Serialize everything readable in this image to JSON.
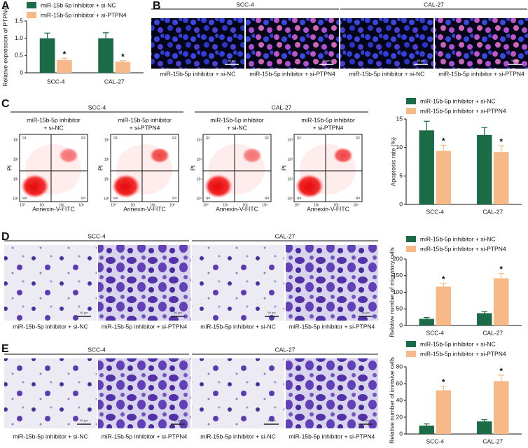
{
  "panel_labels": [
    "A",
    "B",
    "C",
    "D",
    "E"
  ],
  "chart_data": [
    {
      "type": "bar",
      "y_label": "Relative expression of PTPN4",
      "categories": [
        "SCC-4",
        "CAL-27"
      ],
      "series": [
        {
          "name": "miR-15b-5p inhibitor + si-NC",
          "color": "#1b6b46",
          "values": [
            1,
            1
          ],
          "errors": [
            0.15,
            0.16
          ]
        },
        {
          "name": "miR-15b-5p inhibitor + si-PTPN4",
          "color": "#f6b987",
          "values": [
            0.37,
            0.32
          ],
          "errors": [
            0.05,
            0.03
          ],
          "significance": [
            "*",
            "*"
          ]
        }
      ],
      "ylim": [
        0,
        1.5
      ],
      "yticks": [
        0,
        0.5,
        {
          "value": 1,
          "label": "1.0"
        },
        1.5
      ]
    },
    {
      "type": "bar",
      "y_label": "Apoptosis rate (%)",
      "categories": [
        "SCC-4",
        "CAL-27"
      ],
      "series": [
        {
          "name": "miR-15b-5p inhibitor + si-NC",
          "color": "#1b6b46",
          "values": [
            13,
            12.2
          ],
          "errors": [
            1.6,
            1.3
          ]
        },
        {
          "name": "miR-15b-5p inhibitor + si-PTPN4",
          "color": "#f6b987",
          "values": [
            9.4,
            9.2
          ],
          "errors": [
            1,
            1.1
          ],
          "significance": [
            "*",
            "*"
          ]
        }
      ],
      "ylim": [
        0,
        15
      ],
      "yticks": [
        0,
        5,
        10,
        15
      ]
    },
    {
      "type": "bar",
      "y_label": "Relative number of migratory cells",
      "categories": [
        "SCC-4",
        "CAL-27"
      ],
      "series": [
        {
          "name": "miR-15b-5p inhibitor + si-NC",
          "color": "#1b6b46",
          "values": [
            20,
            37
          ],
          "errors": [
            4,
            5
          ]
        },
        {
          "name": "miR-15b-5p inhibitor + si-PTPN4",
          "color": "#f6b987",
          "values": [
            117,
            142
          ],
          "errors": [
            10,
            15
          ],
          "significance": [
            "*",
            "*"
          ]
        }
      ],
      "ylim": [
        0,
        200
      ],
      "yticks": [
        0,
        50,
        100,
        150,
        200
      ]
    },
    {
      "type": "bar",
      "y_label": "Relative number of invasive cells",
      "categories": [
        "SCC-4",
        "CAL-27"
      ],
      "series": [
        {
          "name": "miR-15b-5p inhibitor + si-NC",
          "color": "#1b6b46",
          "values": [
            10,
            15
          ],
          "errors": [
            2,
            2
          ]
        },
        {
          "name": "miR-15b-5p inhibitor + si-PTPN4",
          "color": "#f6b987",
          "values": [
            52,
            63
          ],
          "errors": [
            5,
            7
          ],
          "significance": [
            "*",
            "*"
          ]
        }
      ],
      "ylim": [
        0,
        80
      ],
      "yticks": [
        0,
        20,
        40,
        60,
        80
      ]
    }
  ],
  "panel_b": {
    "groups": [
      "SCC-4",
      "CAL-27"
    ],
    "captions": [
      "miR-15b-5p inhibitor + si-NC",
      "miR-15b-5p inhibitor + si-PTPN4",
      "miR-15b-5p inhibitor + si-NC",
      "miR-15b-5p inhibitor + si-PTPN4"
    ],
    "scale_bar": "50 μm"
  },
  "panel_c": {
    "groups": [
      "SCC-4",
      "CAL-27"
    ],
    "plot_titles": [
      [
        "miR-15b-5p inhibitor",
        "+ si-NC"
      ],
      [
        "miR-15b-5p inhibitor",
        "+ si-PTPN4"
      ],
      [
        "miR-15b-5p inhibitor",
        "+ si-NC"
      ],
      [
        "miR-15b-5p inhibitor",
        "+ si-PTPN4"
      ]
    ],
    "x_label": "Annexin-V-FITC",
    "y_label": "PI",
    "quadrants": [
      "Q1",
      "Q2",
      "Q3",
      "Q4"
    ],
    "ticks": [
      "10⁰",
      "10¹",
      "10²",
      "10³"
    ]
  },
  "panel_d": {
    "groups": [
      "SCC-4",
      "CAL-27"
    ],
    "captions": [
      "miR-15b-5p inhibitor + si-NC",
      "miR-15b-5p inhibitor + si-PTPN4",
      "miR-15b-5p inhibitor + si-NC",
      "miR-15b-5p inhibitor + si-PTPN4"
    ],
    "scale_bar": "50 μm"
  },
  "panel_e": {
    "groups": [
      "SCC-4",
      "CAL-27"
    ],
    "captions": [
      "miR-15b-5p inhibitor + si-NC",
      "miR-15b-5p inhibitor + si-PTPN4",
      "miR-15b-5p inhibitor + si-NC",
      "miR-15b-5p inhibitor + si-PTPN4"
    ],
    "scale_bar": "50 μm"
  }
}
